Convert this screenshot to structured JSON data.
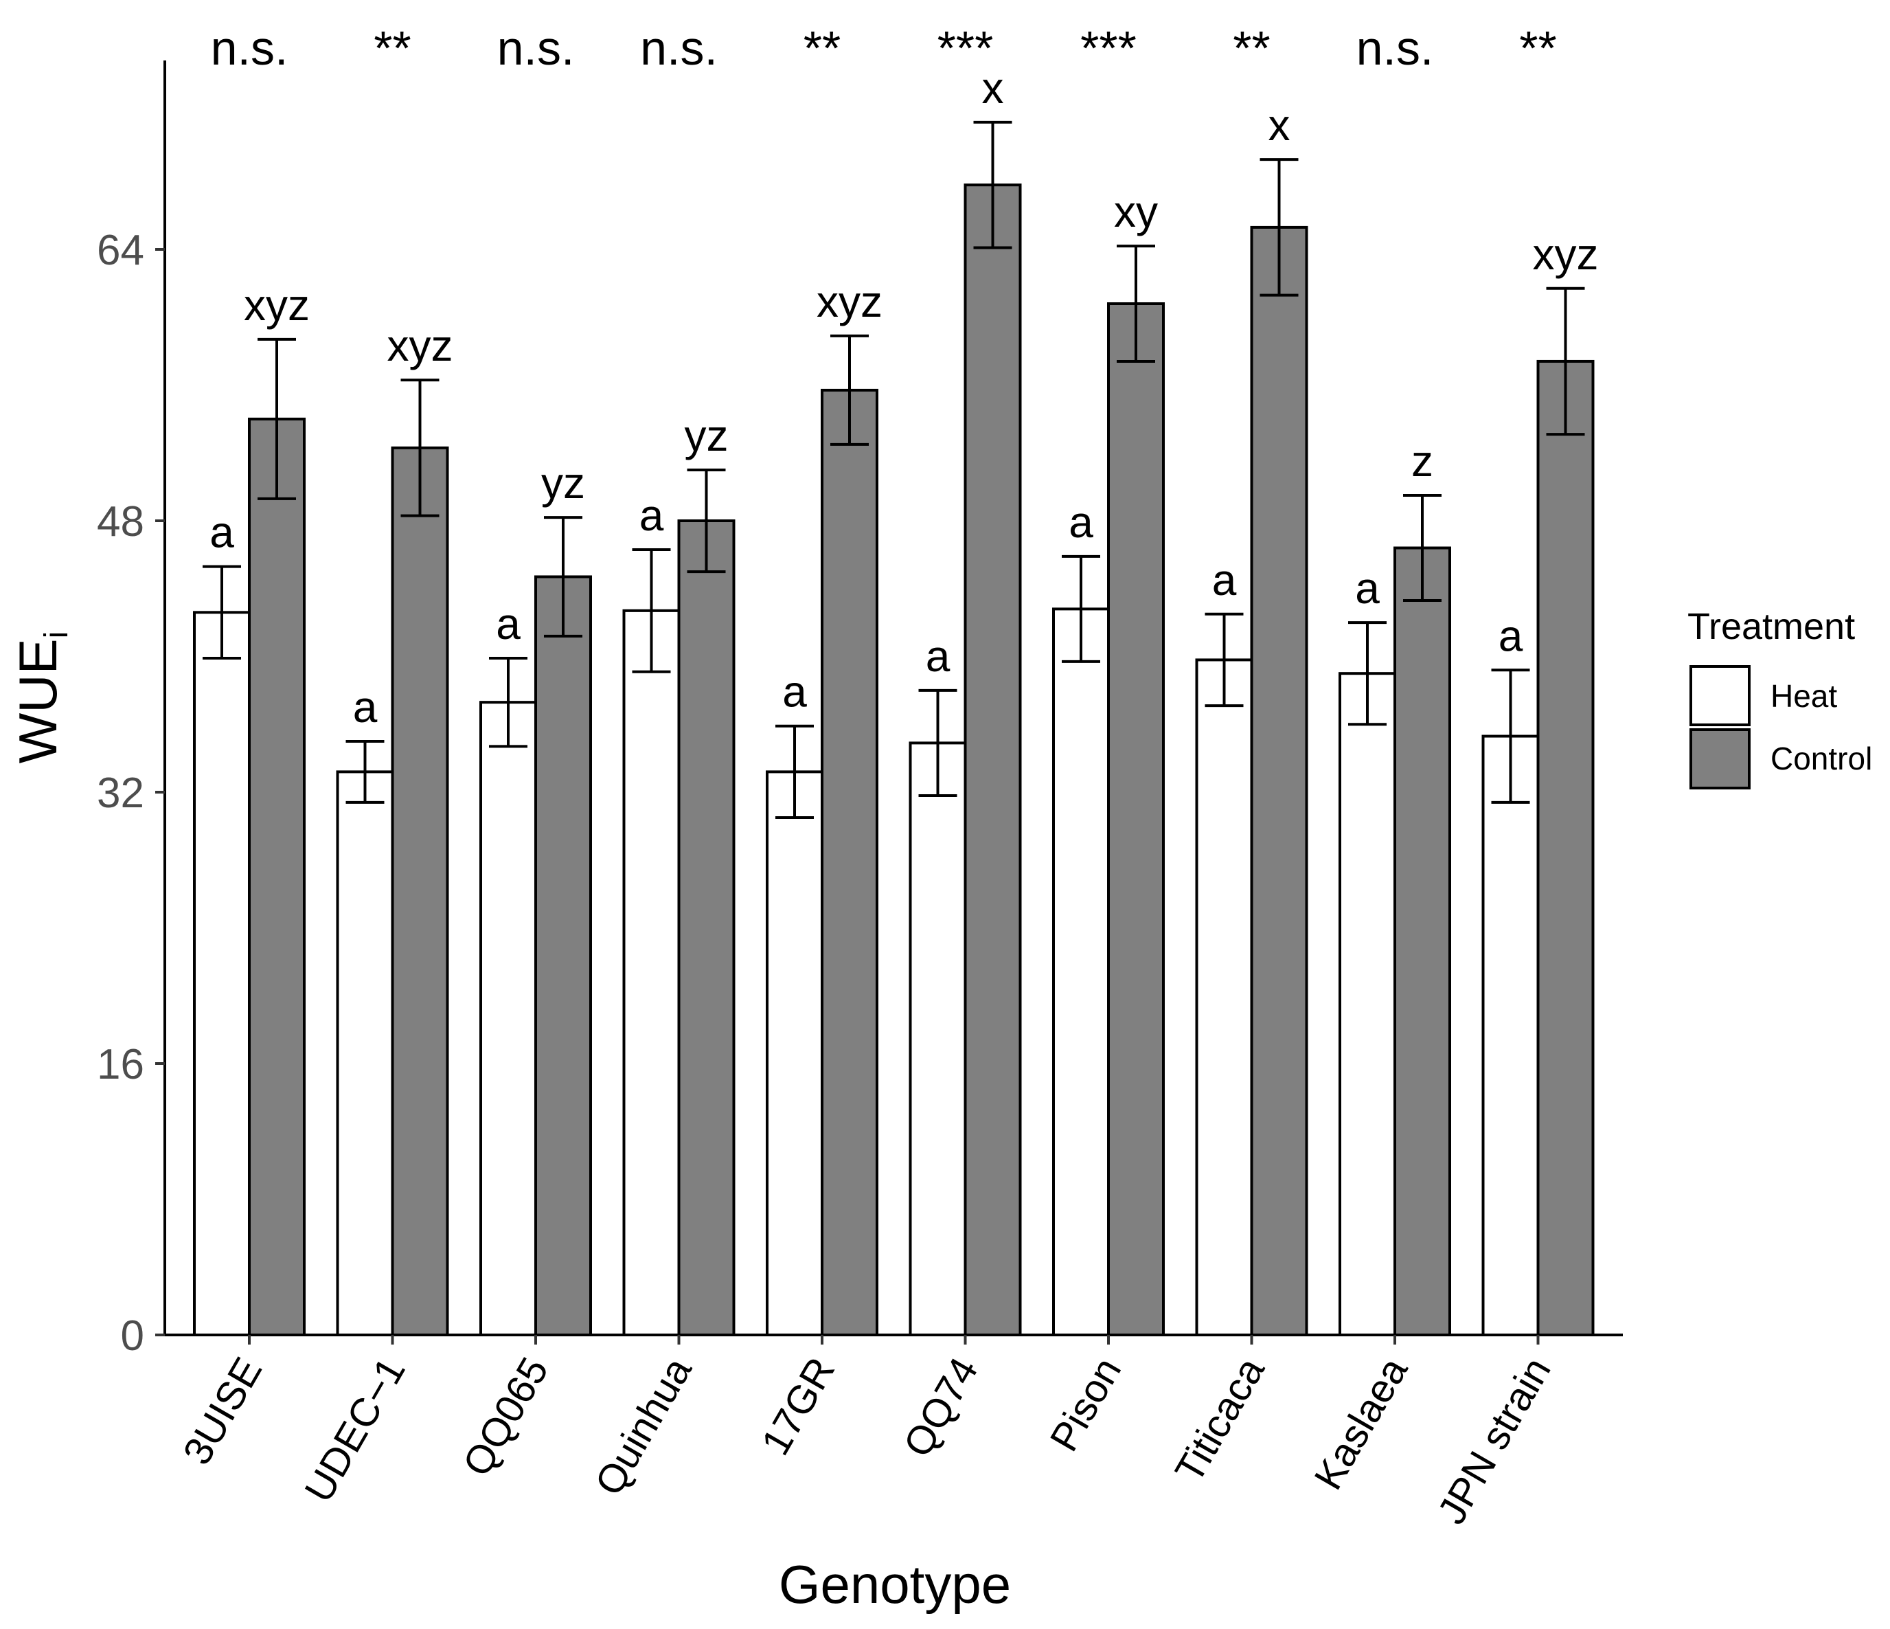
{
  "chart_data": {
    "type": "bar",
    "title": "",
    "xlabel": "Genotype",
    "ylabel": "WUE",
    "ylabel_subscript": "i",
    "ylim": [
      0,
      73
    ],
    "yticks": [
      0,
      16,
      32,
      48,
      64
    ],
    "categories": [
      "3UISE",
      "UDEC−1",
      "QQ065",
      "Quinhua",
      "17GR",
      "QQ74",
      "Pison",
      "Titicaca",
      "Kaslaea",
      "JPN strain"
    ],
    "legend": {
      "title": "Treatment",
      "position": "right"
    },
    "series": [
      {
        "name": "Heat",
        "color": "#ffffff",
        "values": [
          42.6,
          33.2,
          37.3,
          42.7,
          33.2,
          34.9,
          42.8,
          39.8,
          39.0,
          35.3
        ],
        "error": [
          2.7,
          1.8,
          2.6,
          3.6,
          2.7,
          3.1,
          3.1,
          2.7,
          3.0,
          3.9
        ],
        "letters": [
          "a",
          "a",
          "a",
          "a",
          "a",
          "a",
          "a",
          "a",
          "a",
          "a"
        ]
      },
      {
        "name": "Control",
        "color": "#808080",
        "values": [
          54.0,
          52.3,
          44.7,
          48.0,
          55.7,
          67.8,
          60.8,
          65.3,
          46.4,
          57.4
        ],
        "error": [
          4.7,
          4.0,
          3.5,
          3.0,
          3.2,
          3.7,
          3.4,
          4.0,
          3.1,
          4.3
        ],
        "letters": [
          "xyz",
          "xyz",
          "yz",
          "yz",
          "xyz",
          "x",
          "xy",
          "x",
          "z",
          "xyz"
        ]
      }
    ],
    "significance": [
      "n.s.",
      "**",
      "n.s.",
      "n.s.",
      "**",
      "***",
      "***",
      "**",
      "n.s.",
      "**"
    ]
  }
}
